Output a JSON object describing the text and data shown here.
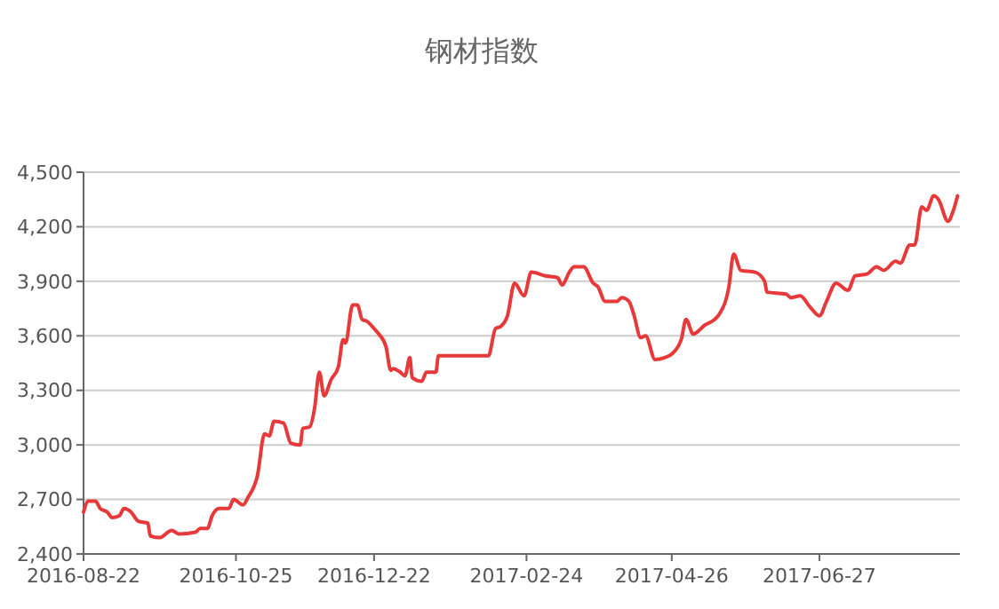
{
  "chart_data": {
    "type": "line",
    "title": "钢材指数",
    "x": [
      "2016-08-22",
      "2016-08-24",
      "2016-08-27",
      "2016-08-29",
      "2016-09-01",
      "2016-09-03",
      "2016-09-06",
      "2016-09-08",
      "2016-09-11",
      "2016-09-14",
      "2016-09-18",
      "2016-09-19",
      "2016-09-23",
      "2016-09-28",
      "2016-10-01",
      "2016-10-08",
      "2016-10-10",
      "2016-10-13",
      "2016-10-15",
      "2016-10-18",
      "2016-10-22",
      "2016-10-24",
      "2016-10-28",
      "2016-10-30",
      "2016-11-03",
      "2016-11-06",
      "2016-11-08",
      "2016-11-10",
      "2016-11-14",
      "2016-11-17",
      "2016-11-21",
      "2016-11-22",
      "2016-11-25",
      "2016-11-27",
      "2016-11-29",
      "2016-12-01",
      "2016-12-04",
      "2016-12-07",
      "2016-12-09",
      "2016-12-10",
      "2016-12-13",
      "2016-12-15",
      "2016-12-17",
      "2016-12-19",
      "2016-12-22",
      "2016-12-24",
      "2016-12-27",
      "2016-12-29",
      "2016-12-30",
      "2017-01-02",
      "2017-01-04",
      "2017-01-06",
      "2017-01-07",
      "2017-01-11",
      "2017-01-13",
      "2017-01-17",
      "2017-01-18",
      "2017-02-08",
      "2017-02-11",
      "2017-02-13",
      "2017-02-16",
      "2017-02-19",
      "2017-02-23",
      "2017-02-26",
      "2017-03-04",
      "2017-03-09",
      "2017-03-11",
      "2017-03-14",
      "2017-03-16",
      "2017-03-20",
      "2017-03-24",
      "2017-03-26",
      "2017-03-29",
      "2017-04-03",
      "2017-04-05",
      "2017-04-08",
      "2017-04-10",
      "2017-04-13",
      "2017-04-15",
      "2017-04-19",
      "2017-04-23",
      "2017-04-26",
      "2017-04-30",
      "2017-05-02",
      "2017-05-05",
      "2017-05-10",
      "2017-05-14",
      "2017-05-16",
      "2017-05-20",
      "2017-05-22",
      "2017-05-25",
      "2017-05-31",
      "2017-06-04",
      "2017-06-05",
      "2017-06-13",
      "2017-06-15",
      "2017-06-19",
      "2017-06-23",
      "2017-06-27",
      "2017-06-30",
      "2017-07-04",
      "2017-07-09",
      "2017-07-12",
      "2017-07-17",
      "2017-07-21",
      "2017-07-24",
      "2017-07-29",
      "2017-07-31",
      "2017-08-04",
      "2017-08-06",
      "2017-08-09",
      "2017-08-11",
      "2017-08-14",
      "2017-08-16",
      "2017-08-20",
      "2017-08-22",
      "2017-08-24"
    ],
    "series": [
      {
        "color": "#e8393a",
        "values": [
          2630,
          2690,
          2690,
          2650,
          2630,
          2600,
          2610,
          2650,
          2630,
          2580,
          2570,
          2500,
          2490,
          2530,
          2510,
          2520,
          2540,
          2540,
          2610,
          2650,
          2650,
          2700,
          2670,
          2710,
          2830,
          3060,
          3050,
          3130,
          3120,
          3010,
          3000,
          3090,
          3100,
          3200,
          3400,
          3270,
          3360,
          3430,
          3580,
          3560,
          3770,
          3770,
          3690,
          3680,
          3640,
          3610,
          3540,
          3410,
          3420,
          3400,
          3380,
          3480,
          3370,
          3350,
          3400,
          3400,
          3490,
          3490,
          3640,
          3650,
          3710,
          3890,
          3820,
          3950,
          3930,
          3920,
          3880,
          3950,
          3980,
          3980,
          3890,
          3870,
          3790,
          3790,
          3810,
          3790,
          3720,
          3590,
          3600,
          3470,
          3480,
          3500,
          3580,
          3690,
          3610,
          3660,
          3690,
          3720,
          3870,
          4050,
          3960,
          3950,
          3900,
          3840,
          3830,
          3810,
          3820,
          3760,
          3710,
          3790,
          3890,
          3850,
          3930,
          3940,
          3980,
          3960,
          4010,
          4000,
          4100,
          4100,
          4310,
          4290,
          4370,
          4350,
          4230,
          4280,
          4370
        ]
      }
    ],
    "xlim": [
      "2016-08-22",
      "2017-08-25"
    ],
    "xticks": [
      "2016-08-22",
      "2016-10-25",
      "2016-12-22",
      "2017-02-24",
      "2017-04-26",
      "2017-06-27"
    ],
    "ylim": [
      2400,
      4500
    ],
    "yticks": [
      {
        "value": 2400,
        "label": "2,400"
      },
      {
        "value": 2700,
        "label": "2,700"
      },
      {
        "value": 3000,
        "label": "3,000"
      },
      {
        "value": 3300,
        "label": "3,300"
      },
      {
        "value": 3600,
        "label": "3,600"
      },
      {
        "value": 3900,
        "label": "3,900"
      },
      {
        "value": 4200,
        "label": "4,200"
      },
      {
        "value": 4500,
        "label": "4,500"
      }
    ],
    "grid": "y",
    "marker": "none",
    "line_style": "solid"
  }
}
